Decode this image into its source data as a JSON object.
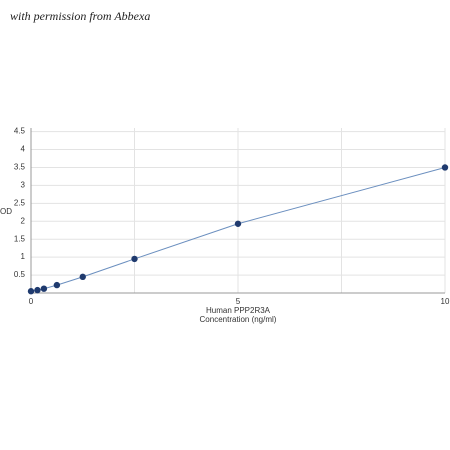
{
  "watermark": "with permission from Abbexa",
  "chart_data": {
    "type": "line",
    "x_label": "Human PPP2R3A",
    "x_label_2": "Concentration (ng/ml)",
    "y_label": "OD",
    "x": [
      0,
      0.156,
      0.312,
      0.625,
      1.25,
      2.5,
      5,
      10
    ],
    "series": [
      {
        "color": "#1f3a6e",
        "line_color": "#6b8fbf",
        "values": [
          0.05,
          0.08,
          0.12,
          0.22,
          0.45,
          0.95,
          1.93,
          3.5
        ]
      }
    ],
    "xlim": [
      0,
      10
    ],
    "xticks": [
      0,
      5,
      10
    ],
    "xgrid": [
      2.5,
      7.5
    ],
    "ylim": [
      0,
      4.6
    ],
    "yticks": [
      0.5,
      1,
      1.5,
      2,
      2.5,
      3,
      3.5,
      4,
      4.5
    ],
    "grid": true
  }
}
